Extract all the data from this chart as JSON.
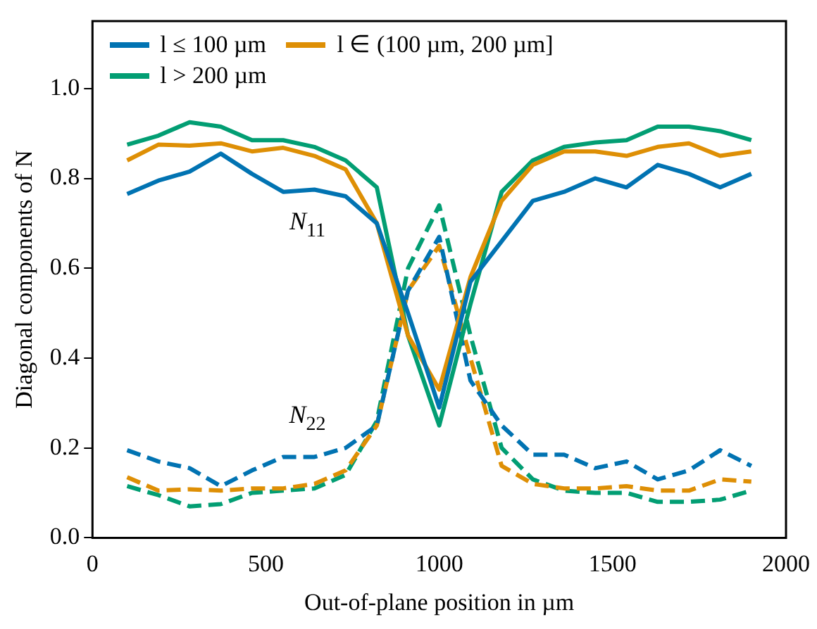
{
  "chart_data": {
    "type": "line",
    "xlabel": "Out-of-plane position in µm",
    "ylabel": "Diagonal components of N",
    "x": [
      100,
      190,
      280,
      370,
      460,
      550,
      640,
      730,
      820,
      910,
      1000,
      1090,
      1180,
      1270,
      1360,
      1450,
      1540,
      1630,
      1720,
      1810,
      1900
    ],
    "series": [
      {
        "name": "l ≤ 100 µm",
        "color": "#0173b2",
        "line_style": "solid",
        "values": [
          0.765,
          0.795,
          0.815,
          0.855,
          0.81,
          0.77,
          0.775,
          0.76,
          0.7,
          0.5,
          0.29,
          0.57,
          0.66,
          0.75,
          0.77,
          0.8,
          0.78,
          0.83,
          0.81,
          0.78,
          0.81
        ]
      },
      {
        "name": "l ∈ (100 µm, 200 µm]",
        "color": "#de8f05",
        "line_style": "solid",
        "values": [
          0.84,
          0.875,
          0.873,
          0.878,
          0.86,
          0.868,
          0.85,
          0.82,
          0.7,
          0.45,
          0.33,
          0.58,
          0.75,
          0.83,
          0.86,
          0.86,
          0.85,
          0.87,
          0.878,
          0.85,
          0.86
        ]
      },
      {
        "name": "l > 200 µm",
        "color": "#029e73",
        "line_style": "solid",
        "values": [
          0.875,
          0.895,
          0.925,
          0.915,
          0.885,
          0.885,
          0.87,
          0.84,
          0.78,
          0.45,
          0.25,
          0.52,
          0.77,
          0.84,
          0.87,
          0.88,
          0.885,
          0.915,
          0.915,
          0.905,
          0.885
        ]
      },
      {
        "color": "#0173b2",
        "line_style": "dashed",
        "values": [
          0.195,
          0.17,
          0.155,
          0.115,
          0.15,
          0.18,
          0.18,
          0.2,
          0.25,
          0.55,
          0.67,
          0.35,
          0.25,
          0.185,
          0.185,
          0.155,
          0.17,
          0.13,
          0.15,
          0.195,
          0.16
        ]
      },
      {
        "color": "#de8f05",
        "line_style": "dashed",
        "values": [
          0.135,
          0.105,
          0.108,
          0.105,
          0.11,
          0.11,
          0.12,
          0.15,
          0.25,
          0.55,
          0.65,
          0.4,
          0.16,
          0.12,
          0.11,
          0.11,
          0.115,
          0.105,
          0.105,
          0.13,
          0.125
        ]
      },
      {
        "color": "#029e73",
        "line_style": "dashed",
        "values": [
          0.115,
          0.095,
          0.07,
          0.075,
          0.1,
          0.105,
          0.11,
          0.14,
          0.26,
          0.6,
          0.74,
          0.45,
          0.2,
          0.13,
          0.105,
          0.1,
          0.1,
          0.08,
          0.08,
          0.085,
          0.105
        ]
      }
    ],
    "annotations": [
      "N$_{11}$",
      "N$_{22}$"
    ],
    "xlim": [
      0,
      2000
    ],
    "xticks": [
      0,
      500,
      1000,
      1500,
      2000
    ],
    "ylim": [
      0,
      1.15
    ],
    "yticks": [
      {
        "value": 0,
        "label": "0.0"
      },
      0.2,
      0.4,
      0.6,
      0.8,
      {
        "value": 1,
        "label": "1.0"
      }
    ],
    "grid": false,
    "legend": "top left",
    "marker": "none"
  }
}
